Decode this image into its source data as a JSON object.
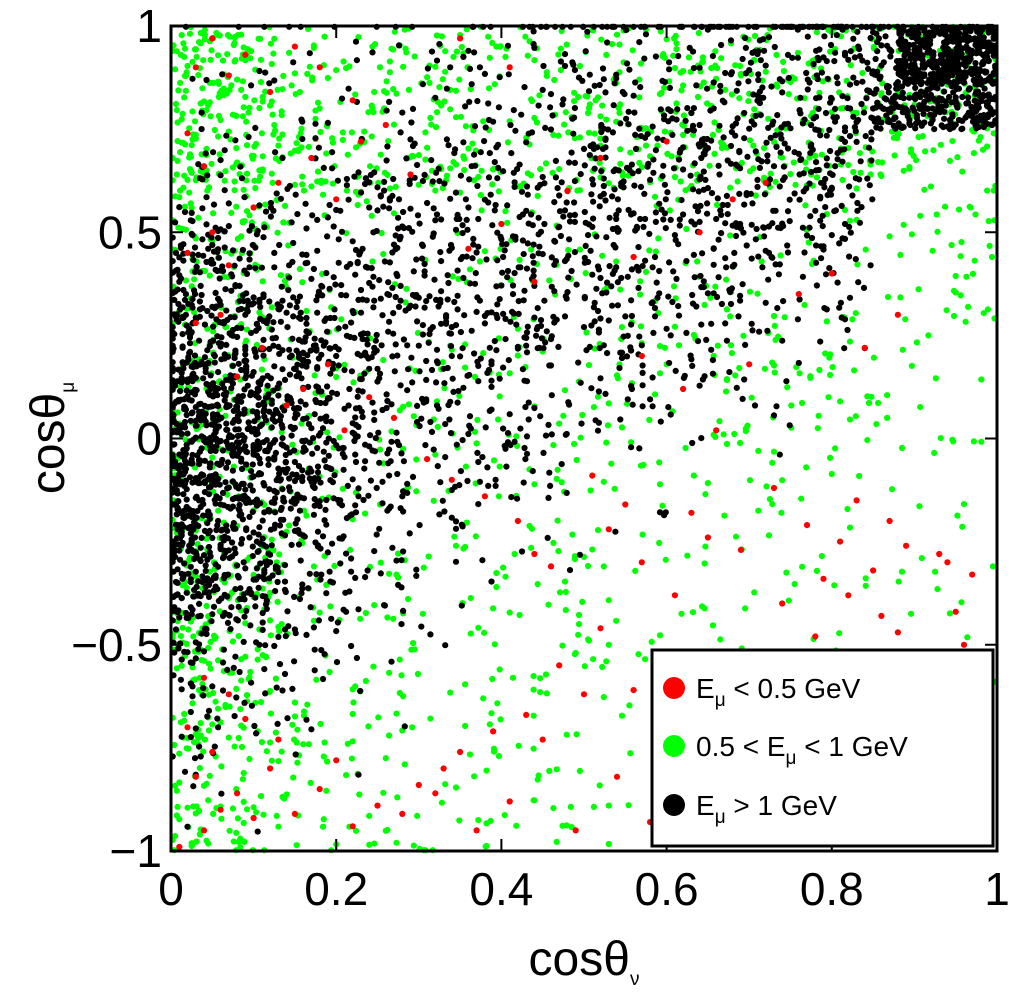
{
  "chart_data": {
    "type": "scatter",
    "title": "",
    "xlabel": {
      "base": "cosθ",
      "sub": "ν"
    },
    "ylabel": {
      "base": "cosθ",
      "sub": "μ"
    },
    "xlim": [
      0,
      1
    ],
    "ylim": [
      -1,
      1
    ],
    "x_ticks": [
      {
        "value": 0,
        "label": "0"
      },
      {
        "value": 0.2,
        "label": "0.2"
      },
      {
        "value": 0.4,
        "label": "0.4"
      },
      {
        "value": 0.6,
        "label": "0.6"
      },
      {
        "value": 0.8,
        "label": "0.8"
      },
      {
        "value": 1,
        "label": "1"
      }
    ],
    "y_ticks": [
      {
        "value": -1,
        "label": "−1"
      },
      {
        "value": -0.5,
        "label": "−0.5"
      },
      {
        "value": 0,
        "label": "0"
      },
      {
        "value": 0.5,
        "label": "0.5"
      },
      {
        "value": 1,
        "label": "1"
      }
    ],
    "grid": false,
    "legend_position": "bottom-right",
    "series": [
      {
        "name": "E_μ < 0.5 GeV",
        "legend": {
          "pre": "E",
          "sub": "μ",
          "post": " < 0.5 GeV"
        },
        "color": "#ff0000",
        "points": [
          [
            0.01,
            -0.99
          ],
          [
            0.04,
            -0.95
          ],
          [
            0.06,
            -0.9
          ],
          [
            0.03,
            -0.82
          ],
          [
            0.08,
            -0.86
          ],
          [
            0.05,
            -0.76
          ],
          [
            0.1,
            -0.92
          ],
          [
            0.12,
            -0.8
          ],
          [
            0.02,
            -0.7
          ],
          [
            0.07,
            -0.62
          ],
          [
            0.04,
            -0.58
          ],
          [
            0.09,
            -0.68
          ],
          [
            0.13,
            -0.73
          ],
          [
            0.15,
            -0.91
          ],
          [
            0.18,
            -0.85
          ],
          [
            0.2,
            -0.78
          ],
          [
            0.22,
            -0.94
          ],
          [
            0.25,
            -0.89
          ],
          [
            0.28,
            -0.91
          ],
          [
            0.3,
            -0.84
          ],
          [
            0.32,
            -0.86
          ],
          [
            0.33,
            -0.8
          ],
          [
            0.35,
            -0.76
          ],
          [
            0.37,
            -0.95
          ],
          [
            0.39,
            -0.71
          ],
          [
            0.41,
            -0.88
          ],
          [
            0.43,
            -0.67
          ],
          [
            0.45,
            -0.73
          ],
          [
            0.47,
            -0.55
          ],
          [
            0.49,
            -0.95
          ],
          [
            0.5,
            -0.62
          ],
          [
            0.52,
            -0.46
          ],
          [
            0.54,
            -0.82
          ],
          [
            0.56,
            -0.61
          ],
          [
            0.58,
            -0.93
          ],
          [
            0.6,
            -0.7
          ],
          [
            0.62,
            -0.88
          ],
          [
            0.64,
            -0.75
          ],
          [
            0.66,
            -0.56
          ],
          [
            0.68,
            -0.83
          ],
          [
            0.7,
            -0.62
          ],
          [
            0.72,
            -0.91
          ],
          [
            0.74,
            -0.4
          ],
          [
            0.75,
            -0.77
          ],
          [
            0.78,
            -0.48
          ],
          [
            0.8,
            -0.94
          ],
          [
            0.82,
            -0.38
          ],
          [
            0.84,
            -0.55
          ],
          [
            0.86,
            -0.43
          ],
          [
            0.88,
            -0.47
          ],
          [
            0.9,
            -0.98
          ],
          [
            0.92,
            -0.52
          ],
          [
            0.94,
            -0.3
          ],
          [
            0.95,
            -0.42
          ],
          [
            0.97,
            -0.33
          ],
          [
            0.99,
            -0.58
          ],
          [
            0.96,
            -0.5
          ],
          [
            0.93,
            -0.28
          ],
          [
            0.89,
            -0.26
          ],
          [
            0.87,
            -0.2
          ],
          [
            0.85,
            -0.32
          ],
          [
            0.83,
            -0.15
          ],
          [
            0.81,
            -0.25
          ],
          [
            0.79,
            -0.34
          ],
          [
            0.77,
            -0.21
          ],
          [
            0.73,
            -0.12
          ],
          [
            0.69,
            -0.27
          ],
          [
            0.65,
            -0.24
          ],
          [
            0.63,
            -0.18
          ],
          [
            0.61,
            -0.38
          ],
          [
            0.57,
            -0.3
          ],
          [
            0.55,
            -0.16
          ],
          [
            0.53,
            -0.22
          ],
          [
            0.51,
            -0.09
          ],
          [
            0.46,
            -0.31
          ],
          [
            0.44,
            -0.28
          ],
          [
            0.42,
            -0.2
          ],
          [
            0.38,
            -0.14
          ],
          [
            0.34,
            -0.1
          ],
          [
            0.31,
            -0.05
          ],
          [
            0.27,
            0.05
          ],
          [
            0.24,
            0.1
          ],
          [
            0.21,
            0.02
          ],
          [
            0.19,
            0.18
          ],
          [
            0.16,
            0.12
          ],
          [
            0.14,
            0.08
          ],
          [
            0.11,
            0.22
          ],
          [
            0.08,
            0.15
          ],
          [
            0.06,
            0.3
          ],
          [
            0.03,
            0.28
          ],
          [
            0.02,
            0.45
          ],
          [
            0.05,
            0.5
          ],
          [
            0.07,
            0.42
          ],
          [
            0.1,
            0.56
          ],
          [
            0.13,
            0.62
          ],
          [
            0.17,
            0.68
          ],
          [
            0.2,
            0.58
          ],
          [
            0.23,
            0.72
          ],
          [
            0.26,
            0.76
          ],
          [
            0.29,
            0.64
          ],
          [
            0.03,
            0.9
          ],
          [
            0.05,
            0.97
          ],
          [
            0.07,
            0.88
          ],
          [
            0.09,
            0.93
          ],
          [
            0.12,
            0.84
          ],
          [
            0.02,
            0.74
          ],
          [
            0.04,
            0.66
          ],
          [
            0.15,
            0.95
          ],
          [
            0.18,
            0.9
          ],
          [
            0.22,
            0.82
          ],
          [
            0.36,
            0.46
          ],
          [
            0.4,
            0.52
          ],
          [
            0.44,
            0.38
          ],
          [
            0.48,
            0.6
          ],
          [
            0.52,
            0.68
          ],
          [
            0.56,
            0.44
          ],
          [
            0.6,
            0.72
          ],
          [
            0.64,
            0.5
          ],
          [
            0.68,
            0.58
          ],
          [
            0.72,
            0.62
          ],
          [
            0.76,
            0.35
          ],
          [
            0.8,
            0.4
          ],
          [
            0.84,
            0.22
          ],
          [
            0.88,
            0.3
          ],
          [
            0.57,
            0.2
          ],
          [
            0.62,
            0.12
          ],
          [
            0.66,
            0.02
          ],
          [
            0.7,
            0.18
          ],
          [
            0.35,
            0.97
          ],
          [
            0.41,
            0.9
          ]
        ]
      },
      {
        "name": "0.5 < E_μ < 1 GeV",
        "legend": {
          "pre": "0.5 < E",
          "sub": "μ",
          "post": " < 1 GeV"
        },
        "color": "#00ff00",
        "points": []
      },
      {
        "name": "E_μ > 1 GeV",
        "legend": {
          "pre": "E",
          "sub": "μ",
          "post": " > 1 GeV"
        },
        "color": "#000000",
        "points": []
      }
    ]
  }
}
